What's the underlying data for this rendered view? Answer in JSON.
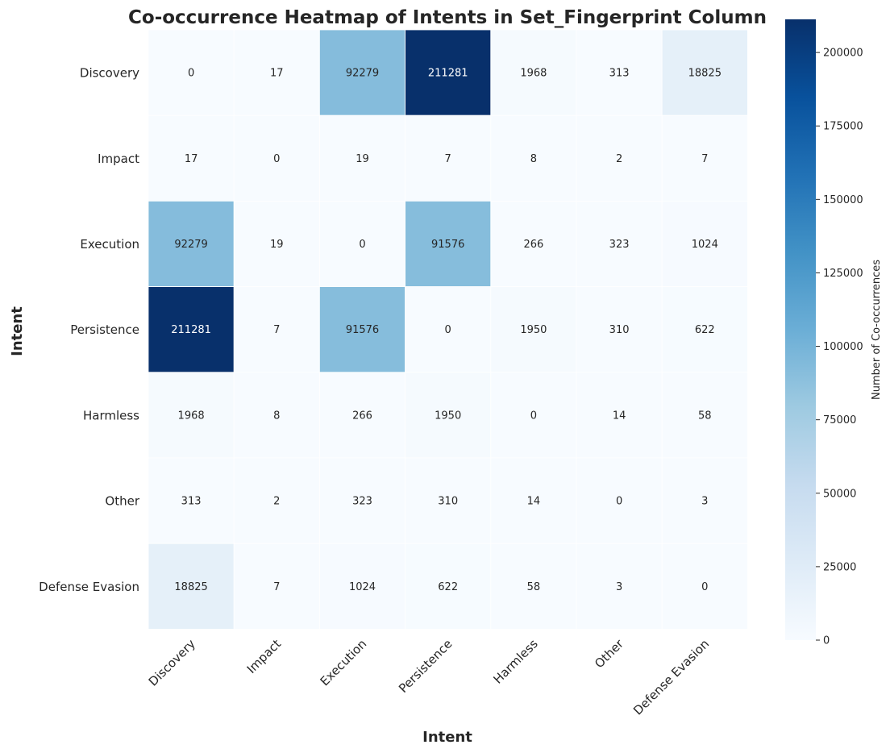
{
  "chart_data": {
    "type": "heatmap",
    "title": "Co-occurrence Heatmap of Intents in Set_Fingerprint Column",
    "xlabel": "Intent",
    "ylabel": "Intent",
    "x_categories": [
      "Discovery",
      "Impact",
      "Execution",
      "Persistence",
      "Harmless",
      "Other",
      "Defense Evasion"
    ],
    "y_categories": [
      "Discovery",
      "Impact",
      "Execution",
      "Persistence",
      "Harmless",
      "Other",
      "Defense Evasion"
    ],
    "values": [
      [
        0,
        17,
        92279,
        211281,
        1968,
        313,
        18825
      ],
      [
        17,
        0,
        19,
        7,
        8,
        2,
        7
      ],
      [
        92279,
        19,
        0,
        91576,
        266,
        323,
        1024
      ],
      [
        211281,
        7,
        91576,
        0,
        1950,
        310,
        622
      ],
      [
        1968,
        8,
        266,
        1950,
        0,
        14,
        58
      ],
      [
        313,
        2,
        323,
        310,
        14,
        0,
        3
      ],
      [
        18825,
        7,
        1024,
        622,
        58,
        3,
        0
      ]
    ],
    "colorbar": {
      "label": "Number of Co-occurrences",
      "range": [
        0,
        211281
      ],
      "ticks": [
        0,
        25000,
        50000,
        75000,
        100000,
        125000,
        150000,
        175000,
        200000
      ],
      "tick_labels": [
        "0",
        "25000",
        "50000",
        "75000",
        "100000",
        "125000",
        "150000",
        "175000",
        "200000"
      ]
    },
    "colormap": [
      "#f7fbff",
      "#deebf7",
      "#c6dbef",
      "#9ecae1",
      "#6baed6",
      "#4292c6",
      "#2171b5",
      "#08519c",
      "#08306b"
    ],
    "grid": false
  }
}
